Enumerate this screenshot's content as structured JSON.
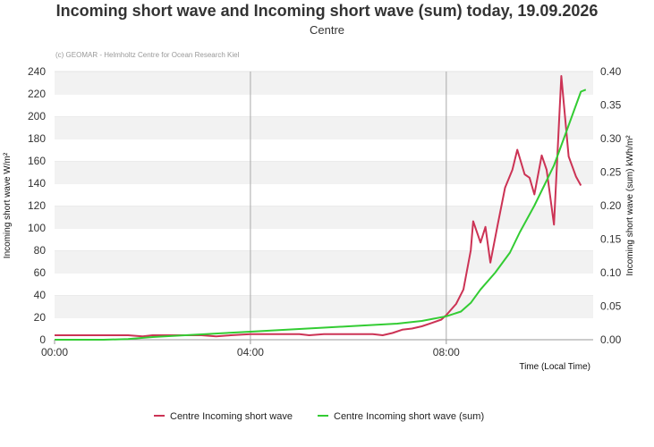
{
  "header": {
    "title": "Incoming short wave and Incoming short wave (sum) today, 19.09.2026",
    "subtitle": "Centre"
  },
  "credit": "(c) GEOMAR - Helmholtz Centre for Ocean Research Kiel",
  "chart_data": {
    "type": "line",
    "x_label": "Time (Local Time)",
    "x_ticks": [
      "00:00",
      "04:00",
      "08:00"
    ],
    "x_range_hours": [
      0,
      11
    ],
    "y_left": {
      "label": "Incoming short wave W/m²",
      "range": [
        0,
        240
      ],
      "ticks": [
        "0",
        "20",
        "40",
        "60",
        "80",
        "100",
        "120",
        "140",
        "160",
        "180",
        "200",
        "220",
        "240"
      ]
    },
    "y_right": {
      "label": "Incoming short wave (sum) kWh/m²",
      "range": [
        0,
        0.4
      ],
      "ticks": [
        "0.00",
        "0.05",
        "0.10",
        "0.15",
        "0.20",
        "0.25",
        "0.30",
        "0.35",
        "0.40"
      ]
    },
    "grid": "horizontal bands",
    "legend_position": "bottom",
    "series": [
      {
        "name": "Centre Incoming short wave",
        "axis": "left",
        "color": "#cc3355",
        "points": [
          [
            0.0,
            4
          ],
          [
            1.0,
            4
          ],
          [
            1.5,
            4
          ],
          [
            1.8,
            3
          ],
          [
            2.0,
            4
          ],
          [
            2.5,
            4
          ],
          [
            3.0,
            4
          ],
          [
            3.3,
            3
          ],
          [
            3.6,
            4
          ],
          [
            4.0,
            5
          ],
          [
            4.5,
            5
          ],
          [
            5.0,
            5
          ],
          [
            5.2,
            4
          ],
          [
            5.5,
            5
          ],
          [
            6.0,
            5
          ],
          [
            6.5,
            5
          ],
          [
            6.7,
            4
          ],
          [
            6.9,
            6
          ],
          [
            7.1,
            9
          ],
          [
            7.3,
            10
          ],
          [
            7.5,
            12
          ],
          [
            7.7,
            15
          ],
          [
            7.9,
            18
          ],
          [
            8.0,
            22
          ],
          [
            8.2,
            32
          ],
          [
            8.35,
            45
          ],
          [
            8.5,
            80
          ],
          [
            8.55,
            106
          ],
          [
            8.7,
            87
          ],
          [
            8.8,
            101
          ],
          [
            8.9,
            69
          ],
          [
            9.05,
            103
          ],
          [
            9.2,
            136
          ],
          [
            9.35,
            152
          ],
          [
            9.45,
            170
          ],
          [
            9.6,
            148
          ],
          [
            9.7,
            145
          ],
          [
            9.8,
            130
          ],
          [
            9.95,
            165
          ],
          [
            10.05,
            152
          ],
          [
            10.2,
            103
          ],
          [
            10.35,
            236
          ],
          [
            10.5,
            164
          ],
          [
            10.65,
            146
          ],
          [
            10.75,
            138
          ]
        ]
      },
      {
        "name": "Centre Incoming short wave (sum)",
        "axis": "right",
        "color": "#33cc33",
        "points": [
          [
            0.0,
            0.0
          ],
          [
            1.0,
            0.0
          ],
          [
            1.5,
            0.001
          ],
          [
            2.0,
            0.004
          ],
          [
            2.5,
            0.006
          ],
          [
            3.0,
            0.008
          ],
          [
            3.5,
            0.01
          ],
          [
            4.0,
            0.012
          ],
          [
            4.5,
            0.014
          ],
          [
            5.0,
            0.016
          ],
          [
            5.5,
            0.018
          ],
          [
            6.0,
            0.02
          ],
          [
            6.5,
            0.022
          ],
          [
            7.0,
            0.024
          ],
          [
            7.5,
            0.028
          ],
          [
            8.0,
            0.035
          ],
          [
            8.3,
            0.042
          ],
          [
            8.5,
            0.055
          ],
          [
            8.7,
            0.075
          ],
          [
            9.0,
            0.1
          ],
          [
            9.3,
            0.13
          ],
          [
            9.5,
            0.16
          ],
          [
            9.8,
            0.2
          ],
          [
            10.0,
            0.23
          ],
          [
            10.2,
            0.26
          ],
          [
            10.4,
            0.3
          ],
          [
            10.6,
            0.34
          ],
          [
            10.75,
            0.37
          ],
          [
            10.85,
            0.373
          ]
        ]
      }
    ]
  }
}
